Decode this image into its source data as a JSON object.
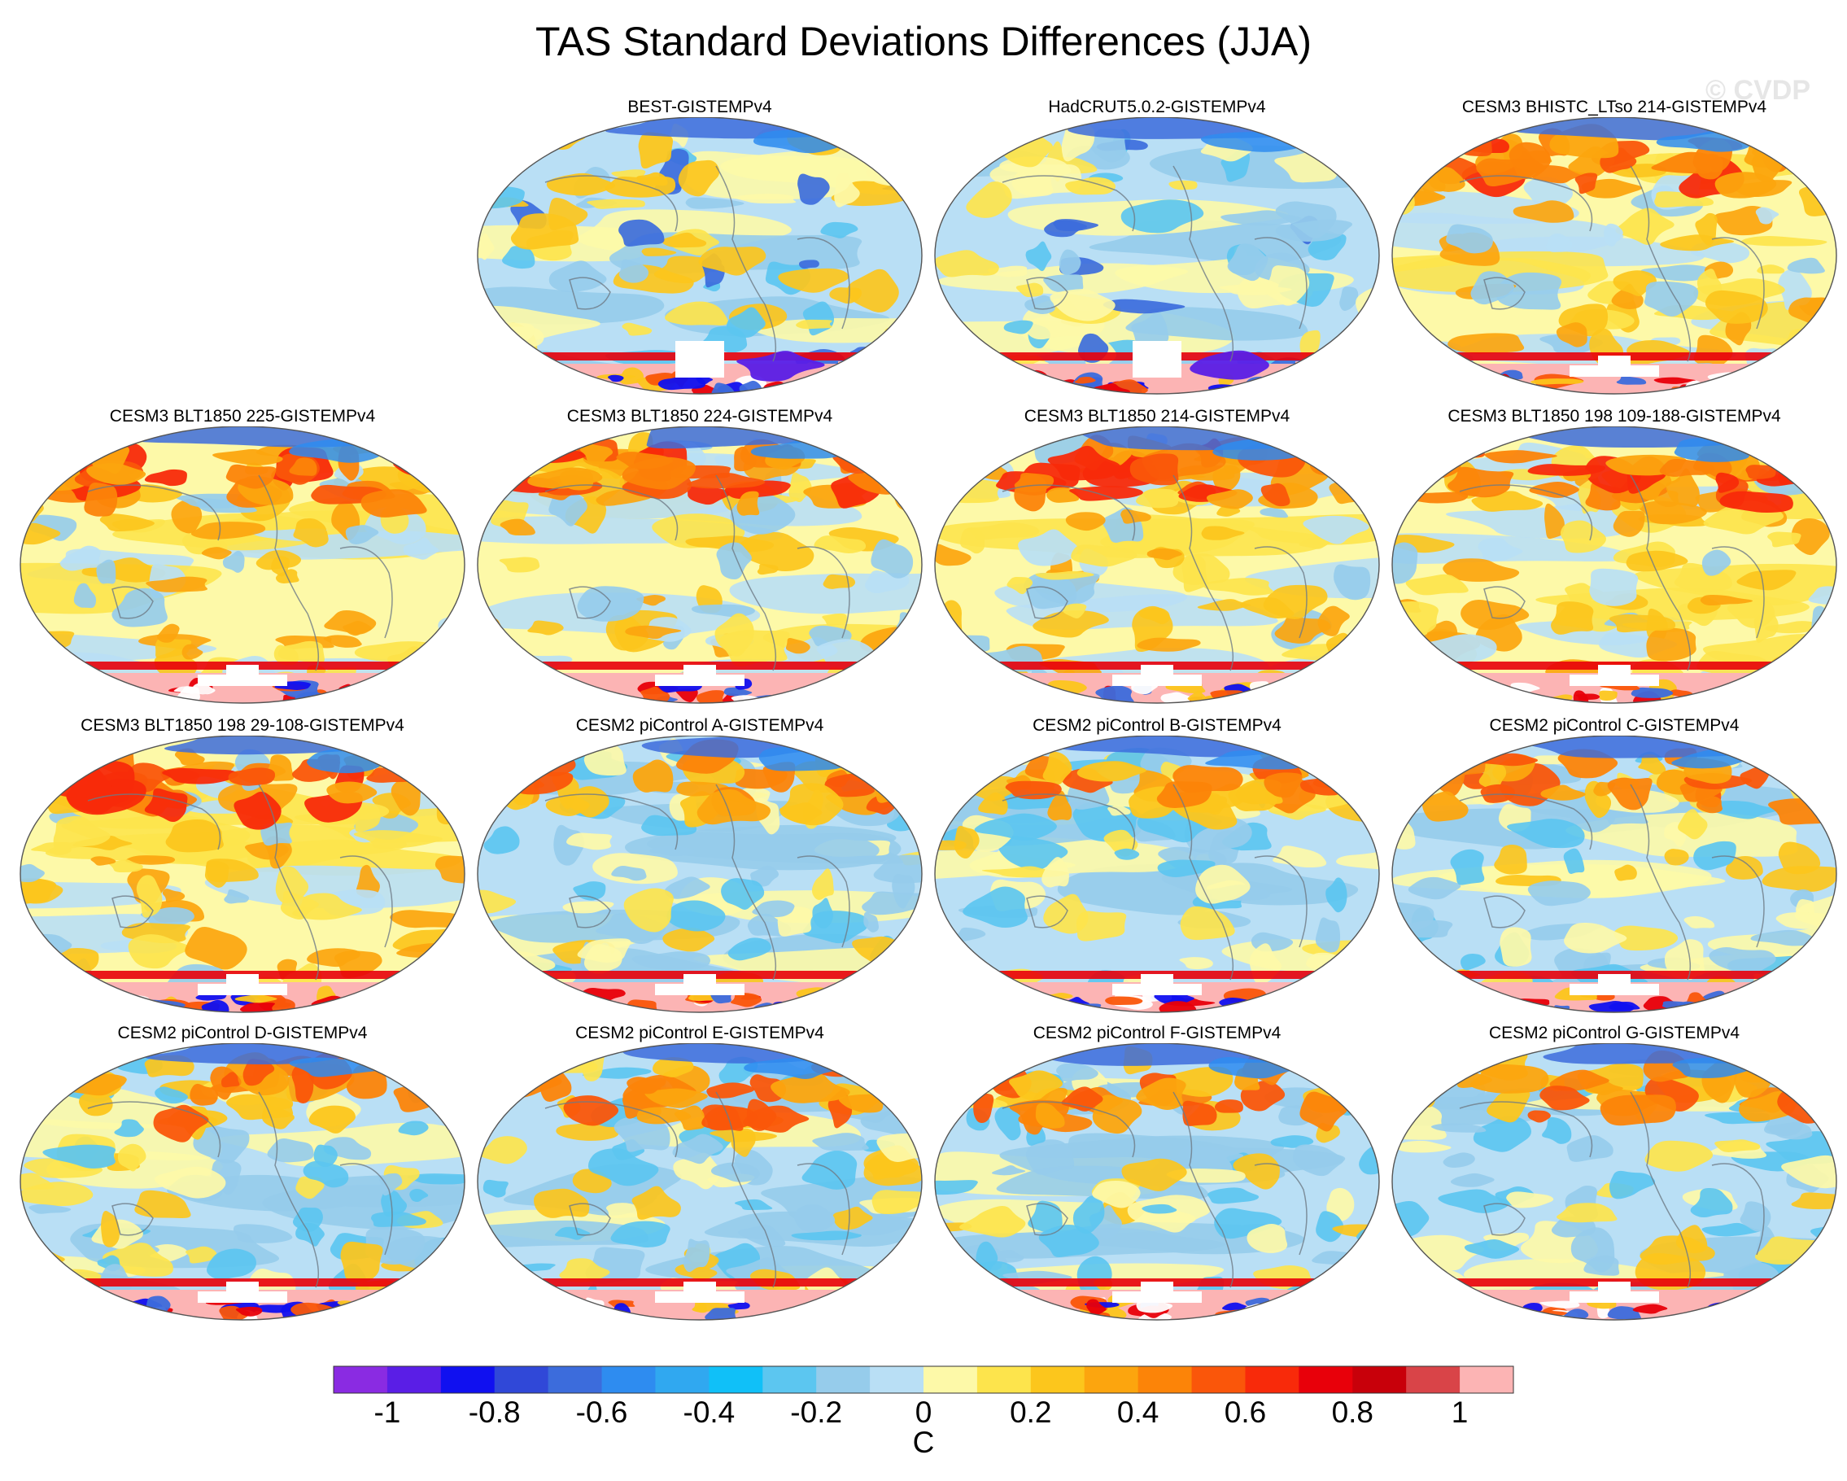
{
  "title": "TAS Standard Deviations Differences (JJA)",
  "watermark": "© CVDP",
  "panels": [
    {
      "label": "BEST-GISTEMPv4",
      "style": "obs1"
    },
    {
      "label": "HadCRUT5.0.2-GISTEMPv4",
      "style": "obs2"
    },
    {
      "label": "CESM3 BHISTC_LTso 214-GISTEMPv4",
      "style": "cesm3"
    },
    {
      "label": "CESM3 BLT1850 225-GISTEMPv4",
      "style": "cesm3"
    },
    {
      "label": "CESM3 BLT1850 224-GISTEMPv4",
      "style": "cesm3"
    },
    {
      "label": "CESM3 BLT1850 214-GISTEMPv4",
      "style": "cesm3"
    },
    {
      "label": "CESM3 BLT1850 198 109-188-GISTEMPv4",
      "style": "cesm3"
    },
    {
      "label": "CESM3 BLT1850 198 29-108-GISTEMPv4",
      "style": "cesm3"
    },
    {
      "label": "CESM2 piControl A-GISTEMPv4",
      "style": "cesm2"
    },
    {
      "label": "CESM2 piControl B-GISTEMPv4",
      "style": "cesm2"
    },
    {
      "label": "CESM2 piControl C-GISTEMPv4",
      "style": "cesm2"
    },
    {
      "label": "CESM2 piControl D-GISTEMPv4",
      "style": "cesm2"
    },
    {
      "label": "CESM2 piControl E-GISTEMPv4",
      "style": "cesm2"
    },
    {
      "label": "CESM2 piControl F-GISTEMPv4",
      "style": "cesm2"
    },
    {
      "label": "CESM2 piControl G-GISTEMPv4",
      "style": "cesm2"
    }
  ],
  "colorbar": {
    "colors": [
      "#8a2be2",
      "#5a1ee6",
      "#1010f0",
      "#3048d8",
      "#3c6cdc",
      "#2e8cf0",
      "#30a8f0",
      "#10c0f8",
      "#5cc6f0",
      "#96cceb",
      "#b9dff5",
      "#fdf9a8",
      "#fde44c",
      "#fcc61c",
      "#fca50e",
      "#fc8408",
      "#fa560a",
      "#f82a0a",
      "#e8000a",
      "#c8000a",
      "#d94448",
      "#fcb4b4"
    ],
    "ticks": [
      "-1",
      "-0.8",
      "-0.6",
      "-0.4",
      "-0.2",
      "0",
      "0.2",
      "0.4",
      "0.6",
      "0.8",
      "1"
    ],
    "units": "C"
  }
}
